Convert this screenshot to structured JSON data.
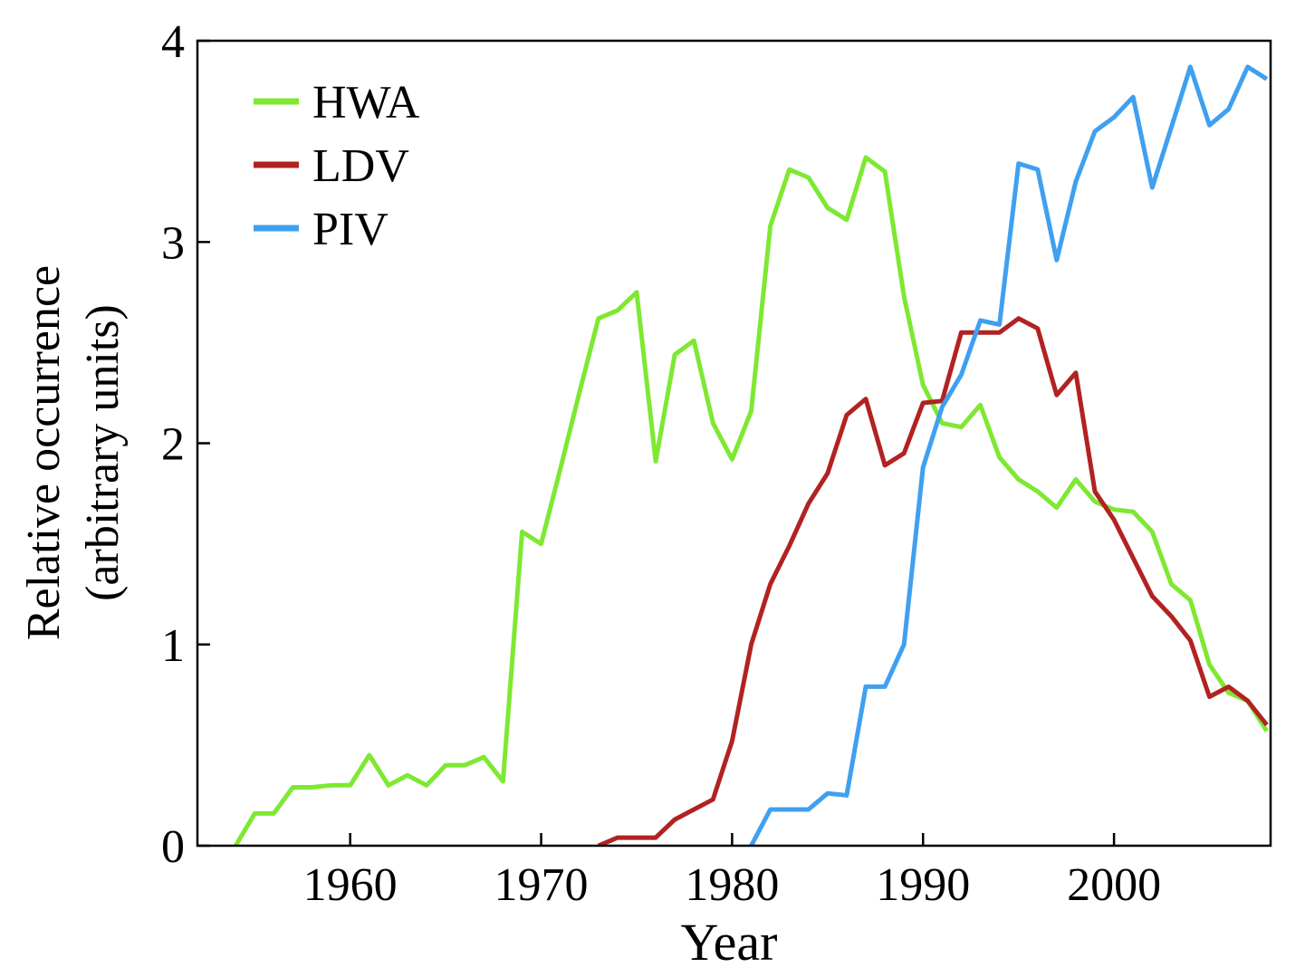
{
  "chart_data": {
    "type": "line",
    "xlabel": "Year",
    "ylabel": [
      "Relative occurrence",
      "(arbitrary units)"
    ],
    "x": [
      1954,
      1955,
      1956,
      1957,
      1958,
      1959,
      1960,
      1961,
      1962,
      1963,
      1964,
      1965,
      1966,
      1967,
      1968,
      1969,
      1970,
      1971,
      1972,
      1973,
      1974,
      1975,
      1976,
      1977,
      1978,
      1979,
      1980,
      1981,
      1982,
      1983,
      1984,
      1985,
      1986,
      1987,
      1988,
      1989,
      1990,
      1991,
      1992,
      1993,
      1994,
      1995,
      1996,
      1997,
      1998,
      1999,
      2000,
      2001,
      2002,
      2003,
      2004,
      2005,
      2006,
      2007,
      2008
    ],
    "series": [
      {
        "name": "HWA",
        "color": "#7ee832",
        "values": [
          0,
          0.16,
          0.16,
          0.29,
          0.29,
          0.3,
          0.3,
          0.45,
          0.3,
          0.35,
          0.3,
          0.4,
          0.4,
          0.44,
          0.32,
          1.56,
          1.5,
          1.87,
          2.25,
          2.62,
          2.66,
          2.75,
          1.91,
          2.44,
          2.51,
          2.1,
          1.92,
          2.16,
          3.08,
          3.36,
          3.32,
          3.17,
          3.11,
          3.42,
          3.35,
          2.73,
          2.29,
          2.1,
          2.08,
          2.19,
          1.93,
          1.82,
          1.76,
          1.68,
          1.82,
          1.71,
          1.67,
          1.66,
          1.56,
          1.3,
          1.22,
          0.9,
          0.76,
          0.72,
          0.57
        ]
      },
      {
        "name": "LDV",
        "color": "#b22222",
        "values": [
          null,
          null,
          null,
          null,
          null,
          null,
          null,
          null,
          null,
          null,
          null,
          null,
          null,
          null,
          null,
          null,
          null,
          null,
          null,
          0,
          0.04,
          0.04,
          0.04,
          0.13,
          0.18,
          0.23,
          0.52,
          1.0,
          1.3,
          1.49,
          1.7,
          1.85,
          2.14,
          2.22,
          1.89,
          1.95,
          2.2,
          2.21,
          2.55,
          2.55,
          2.55,
          2.62,
          2.57,
          2.24,
          2.35,
          1.76,
          1.62,
          1.43,
          1.24,
          1.14,
          1.02,
          0.74,
          0.79,
          0.72,
          0.6
        ]
      },
      {
        "name": "PIV",
        "color": "#3fa0f0",
        "values": [
          null,
          null,
          null,
          null,
          null,
          null,
          null,
          null,
          null,
          null,
          null,
          null,
          null,
          null,
          null,
          null,
          null,
          null,
          null,
          null,
          null,
          null,
          null,
          null,
          null,
          null,
          null,
          0,
          0.18,
          0.18,
          0.18,
          0.26,
          0.25,
          0.79,
          0.79,
          1.0,
          1.88,
          2.18,
          2.34,
          2.61,
          2.59,
          3.39,
          3.36,
          2.91,
          3.3,
          3.55,
          3.62,
          3.72,
          3.27,
          3.57,
          3.87,
          3.58,
          3.66,
          3.87,
          3.81
        ]
      }
    ],
    "xlim": [
      1952,
      2008.2
    ],
    "xticks": [
      1960,
      1970,
      1980,
      1990,
      2000
    ],
    "ylim": [
      0,
      4
    ],
    "yticks": [
      0,
      1,
      2,
      3,
      4
    ],
    "legend": "upper left"
  }
}
